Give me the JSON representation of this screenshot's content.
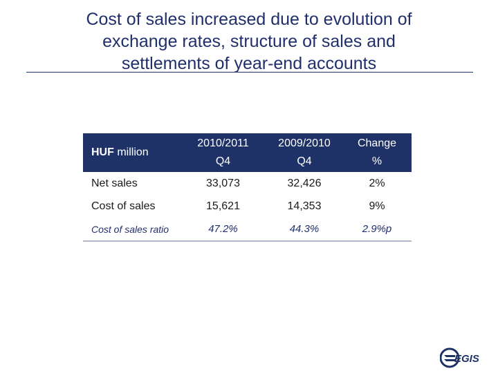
{
  "slide": {
    "title_lines": [
      "Cost of sales increased due to evolution of",
      "exchange rates, structure of sales and",
      "settlements of year-end accounts"
    ]
  },
  "table": {
    "header": {
      "label_bold": "HUF",
      "label_rest": " million",
      "col1_line1": "2010/2011",
      "col1_line2": "Q4",
      "col2_line1": "2009/2010",
      "col2_line2": "Q4",
      "col3_line1": "Change",
      "col3_line2": "%"
    },
    "rows": [
      {
        "label": "Net sales",
        "v1": "33,073",
        "v2": "32,426",
        "v3": "2%"
      },
      {
        "label": "Cost of sales",
        "v1": "15,621",
        "v2": "14,353",
        "v3": "9%"
      },
      {
        "label": "Cost of sales ratio",
        "v1": "47.2%",
        "v2": "44.3%",
        "v3": "2.9%p"
      }
    ]
  },
  "logo": {
    "text": "EGIS",
    "color": "#1f3267"
  }
}
